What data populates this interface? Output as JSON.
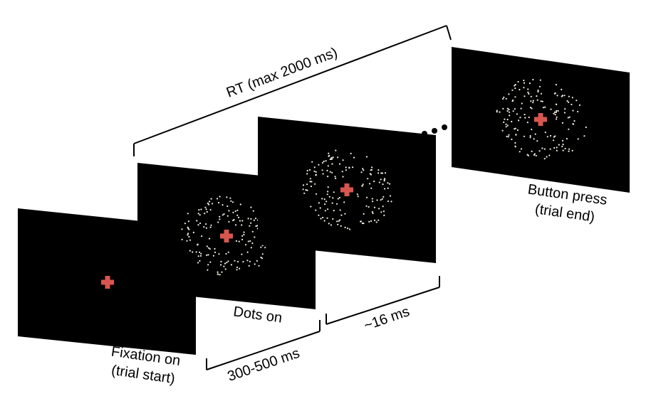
{
  "colors": {
    "screen": "#000000",
    "fixation": "#d9564f",
    "dot": "#f2f2e6",
    "line": "#000000"
  },
  "icons": {
    "fixation": "plus-cross-icon",
    "continuation": "ellipsis-icon"
  },
  "screens": [
    {
      "id": "fixation",
      "label_lines": [
        "Fixation on",
        "(trial start)"
      ],
      "has_dots": false
    },
    {
      "id": "dots",
      "label_lines": [
        "Dots on"
      ],
      "has_dots": true
    },
    {
      "id": "frame",
      "label_lines": [],
      "has_dots": true
    },
    {
      "id": "press",
      "label_lines": [
        "Button press",
        "(trial end)"
      ],
      "has_dots": true
    }
  ],
  "intervals": {
    "rt": "RT (max 2000 ms)",
    "fixation_to_dots": "300-500 ms",
    "frame": "~16 ms"
  }
}
